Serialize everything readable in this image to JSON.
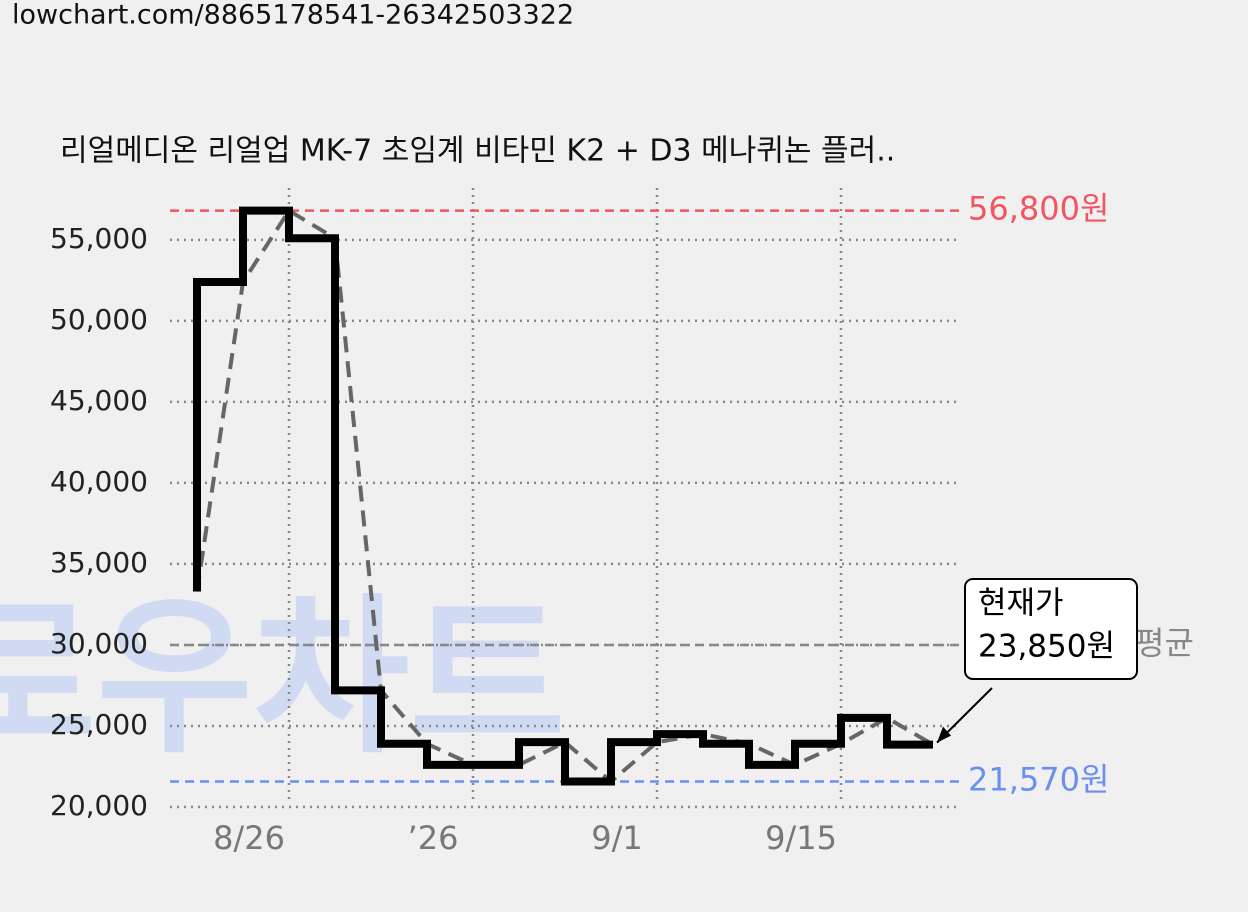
{
  "url": "lowchart.com/8865178541-26342503322",
  "chart_data": {
    "type": "line",
    "title": "리얼메디온 리얼업 MK-7 초임계 비타민 K2 + D3 메나퀴논 플러..",
    "categories": [
      null,
      null,
      "8/26",
      null,
      null,
      null,
      "’26",
      null,
      null,
      null,
      "9/1",
      null,
      null,
      null,
      "9/15",
      null,
      null
    ],
    "values": [
      33300,
      52400,
      56800,
      55100,
      27200,
      23900,
      22600,
      22600,
      24000,
      21570,
      24000,
      24500,
      23900,
      22600,
      23900,
      25500,
      23850
    ],
    "color": "#000000",
    "step": true,
    "trend_line": {
      "color": "#666666",
      "dashed": true
    },
    "ylim": [
      20000,
      58200
    ],
    "yticks": [
      {
        "value": 20000,
        "label": "20,000"
      },
      {
        "value": 25000,
        "label": "25,000"
      },
      {
        "value": 30000,
        "label": "30,000"
      },
      {
        "value": 35000,
        "label": "35,000"
      },
      {
        "value": 40000,
        "label": "40,000"
      },
      {
        "value": 45000,
        "label": "45,000"
      },
      {
        "value": 50000,
        "label": "50,000"
      },
      {
        "value": 55000,
        "label": "55,000"
      }
    ],
    "grid": true,
    "reference_lines": [
      {
        "value": 56800,
        "label": "56,800원",
        "color": "#f05561"
      },
      {
        "value": 30000,
        "label": "평균",
        "color": "#888888"
      },
      {
        "value": 21570,
        "label": "21,570원",
        "color": "#6b8ff0"
      }
    ],
    "annotation": {
      "title": "현재가",
      "label": "23,850원"
    },
    "watermark": "로우차트"
  }
}
